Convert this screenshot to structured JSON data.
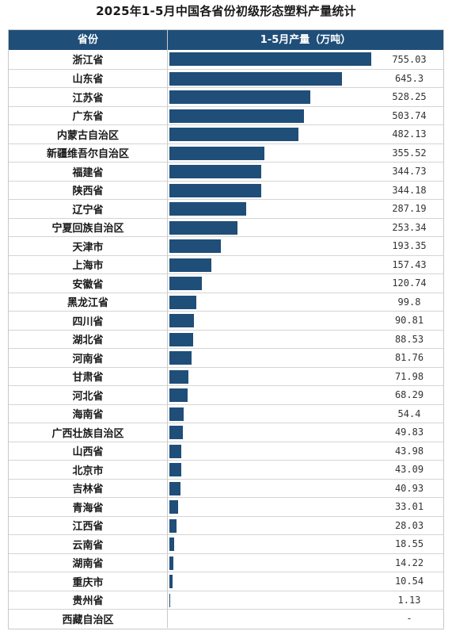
{
  "chart_data": {
    "type": "bar",
    "title": "2025年1-5月中国各省份初级形态塑料产量统计",
    "columns": [
      "省份",
      "1-5月产量（万吨）"
    ],
    "categories": [
      "浙江省",
      "山东省",
      "江苏省",
      "广东省",
      "内蒙古自治区",
      "新疆维吾尔自治区",
      "福建省",
      "陕西省",
      "辽宁省",
      "宁夏回族自治区",
      "天津市",
      "上海市",
      "安徽省",
      "黑龙江省",
      "四川省",
      "湖北省",
      "河南省",
      "甘肃省",
      "河北省",
      "海南省",
      "广西壮族自治区",
      "山西省",
      "北京市",
      "吉林省",
      "青海省",
      "江西省",
      "云南省",
      "湖南省",
      "重庆市",
      "贵州省",
      "西藏自治区"
    ],
    "values": [
      755.03,
      645.3,
      528.25,
      503.74,
      482.13,
      355.52,
      344.73,
      344.18,
      287.19,
      253.34,
      193.35,
      157.43,
      120.74,
      99.8,
      90.81,
      88.53,
      81.76,
      71.98,
      68.29,
      54.4,
      49.83,
      43.98,
      43.09,
      40.93,
      33.01,
      28.03,
      18.55,
      14.22,
      10.54,
      1.13,
      null
    ],
    "value_labels": [
      "755.03",
      "645.3",
      "528.25",
      "503.74",
      "482.13",
      "355.52",
      "344.73",
      "344.18",
      "287.19",
      "253.34",
      "193.35",
      "157.43",
      "120.74",
      "99.8",
      "90.81",
      "88.53",
      "81.76",
      "71.98",
      "68.29",
      "54.4",
      "49.83",
      "43.98",
      "43.09",
      "40.93",
      "33.01",
      "28.03",
      "18.55",
      "14.22",
      "10.54",
      "1.13",
      "-"
    ],
    "bar_color": "#1f4e79",
    "header_color": "#1f4e79"
  }
}
